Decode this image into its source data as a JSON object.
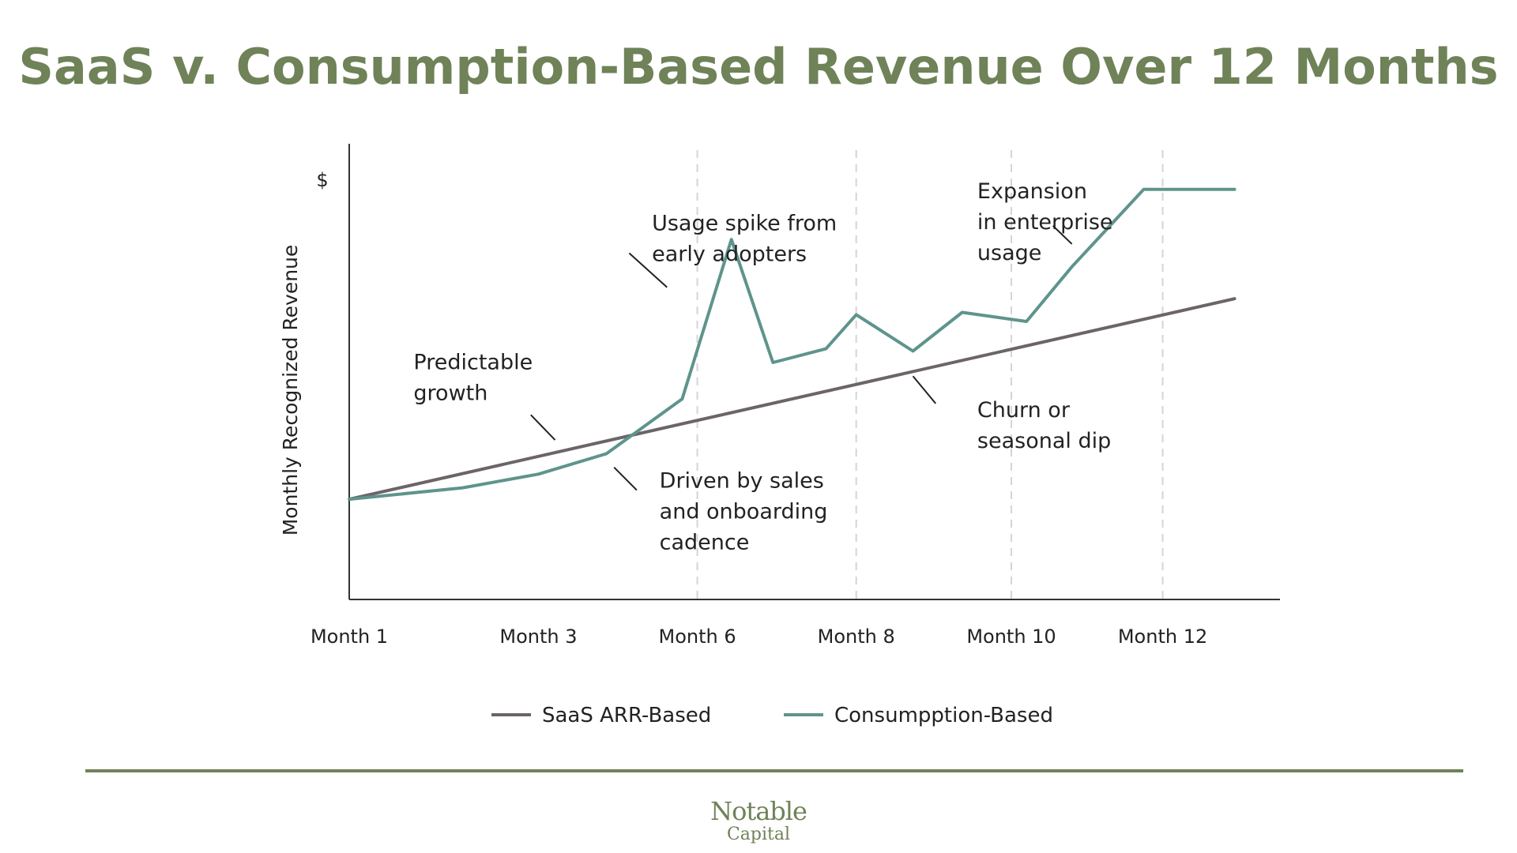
{
  "title": "SaaS v. Consumption-Based Revenue Over 12 Months",
  "chart_data": {
    "type": "line",
    "title": "SaaS v. Consumption-Based Revenue Over 12 Months",
    "ylabel": "Monthly Recognized Revenue",
    "y_unit_label": "$",
    "xlabel": "",
    "xlim": [
      1,
      13.3
    ],
    "ylim": [
      0,
      100
    ],
    "x_ticks": [
      {
        "x": 1,
        "label": "Month 1"
      },
      {
        "x": 3.5,
        "label": "Month 3"
      },
      {
        "x": 5.6,
        "label": "Month 6"
      },
      {
        "x": 7.7,
        "label": "Month 8"
      },
      {
        "x": 9.75,
        "label": "Month 10"
      },
      {
        "x": 11.75,
        "label": "Month 12"
      }
    ],
    "vertical_guides_x": [
      5.6,
      7.7,
      9.75,
      11.75
    ],
    "series": [
      {
        "name": "SaaS ARR-Based",
        "color": "#6b6468",
        "points": [
          [
            1,
            22
          ],
          [
            12.7,
            66
          ]
        ]
      },
      {
        "name": "Consumpption-Based",
        "color": "#5e948c",
        "points": [
          [
            1,
            22
          ],
          [
            2.5,
            24.5
          ],
          [
            3.5,
            27.5
          ],
          [
            4.4,
            32
          ],
          [
            5.4,
            44
          ],
          [
            6.05,
            79
          ],
          [
            6.6,
            52
          ],
          [
            7.3,
            55
          ],
          [
            7.7,
            62.5
          ],
          [
            8.45,
            54.5
          ],
          [
            9.1,
            63
          ],
          [
            9.95,
            61
          ],
          [
            10.55,
            73
          ],
          [
            11.5,
            90
          ],
          [
            12.7,
            90
          ]
        ]
      }
    ],
    "annotations": [
      {
        "lines": [
          "Usage spike from",
          "early adopters"
        ],
        "at": [
          5.0,
          81
        ],
        "pointer": [
          [
            4.7,
            76
          ],
          [
            5.2,
            68.5
          ]
        ]
      },
      {
        "lines": [
          "Expansion",
          "in enterprise",
          "usage"
        ],
        "at": [
          9.3,
          88
        ],
        "pointer": [
          [
            10.3,
            82
          ],
          [
            10.55,
            78
          ]
        ]
      },
      {
        "lines": [
          "Predictable",
          "growth"
        ],
        "at": [
          1.85,
          50.5
        ],
        "pointer": [
          [
            3.4,
            40.5
          ],
          [
            3.72,
            35
          ]
        ]
      },
      {
        "lines": [
          "Churn or",
          "seasonal dip"
        ],
        "at": [
          9.3,
          40
        ],
        "pointer": [
          [
            8.45,
            49
          ],
          [
            8.75,
            43
          ]
        ]
      },
      {
        "lines": [
          "Driven by sales",
          "and onboarding",
          "cadence"
        ],
        "at": [
          5.1,
          24.5
        ],
        "pointer": [
          [
            4.5,
            29
          ],
          [
            4.8,
            24
          ]
        ]
      }
    ],
    "legend": {
      "position": "bottom-center",
      "entries": [
        "SaaS ARR-Based",
        "Consumpption-Based"
      ]
    }
  },
  "footer": {
    "brand_line1": "Notable",
    "brand_line2": "Capital"
  }
}
